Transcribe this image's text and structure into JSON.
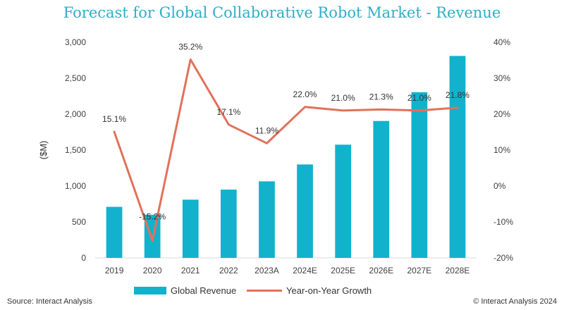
{
  "title": "Forecast for Global Collaborative Robot Market - Revenue",
  "source": "Source: Interact Analysis",
  "copyright": "© Interact Analysis 2024",
  "colors": {
    "bar": "#12b2cc",
    "line": "#e2715b",
    "title": "#2bb0c4"
  },
  "chart_data": {
    "type": "bar+line",
    "categories": [
      "2019",
      "2020",
      "2021",
      "2022",
      "2023A",
      "2024E",
      "2025E",
      "2026E",
      "2027E",
      "2028E"
    ],
    "series": [
      {
        "name": "Global Revenue",
        "axis": "left",
        "type": "bar",
        "values": [
          710,
          600,
          810,
          950,
          1065,
          1300,
          1575,
          1905,
          2305,
          2810
        ]
      },
      {
        "name": "Year-on-Year Growth",
        "axis": "right",
        "type": "line",
        "values": [
          15.1,
          -15.2,
          35.2,
          17.1,
          11.9,
          22.0,
          21.0,
          21.3,
          21.0,
          21.8
        ],
        "labels": [
          "15.1%",
          "-15.2%",
          "35.2%",
          "17.1%",
          "11.9%",
          "22.0%",
          "21.0%",
          "21.3%",
          "21.0%",
          "21.8%"
        ]
      }
    ],
    "ylabel": "($M)",
    "ylim": [
      0,
      3000
    ],
    "yticks": [
      "0",
      "500",
      "1,000",
      "1,500",
      "2,000",
      "2,500",
      "3,000"
    ],
    "y2lim": [
      -20,
      40
    ],
    "y2ticks": [
      "-20%",
      "-10%",
      "0%",
      "10%",
      "20%",
      "30%",
      "40%"
    ],
    "grid": false,
    "legend": "bottom"
  }
}
